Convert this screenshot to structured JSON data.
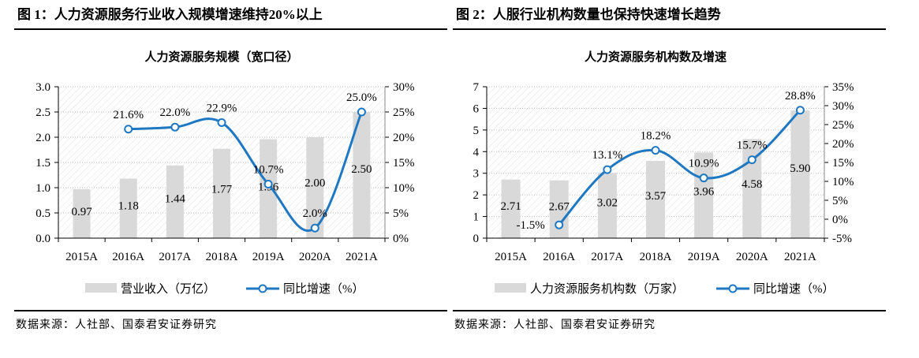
{
  "figures": [
    {
      "header": "图 1：人力资源服务行业收入规模增速维持20%以上",
      "source": "数据来源：人社部、国泰君安证券研究"
    },
    {
      "header": "图 2：人服行业机构数量也保持快速增长趋势",
      "source": "数据来源：人社部、国泰君安证券研究"
    }
  ],
  "colors": {
    "bar": "#d9d9d9",
    "line": "#1f78c1",
    "grid": "#bfbfbf"
  },
  "chart_data": [
    {
      "type": "bar+line",
      "title": "人力资源服务规模（宽口径）",
      "categories": [
        "2015A",
        "2016A",
        "2017A",
        "2018A",
        "2019A",
        "2020A",
        "2021A"
      ],
      "series": [
        {
          "name": "营业收入（万亿）",
          "type": "bar",
          "axis": "left",
          "values": [
            0.97,
            1.18,
            1.44,
            1.77,
            1.96,
            2.0,
            2.5
          ],
          "labels": [
            "0.97",
            "1.18",
            "1.44",
            "1.77",
            "1.96",
            "2.00",
            "2.50"
          ]
        },
        {
          "name": "同比增速（%）",
          "type": "line",
          "axis": "right",
          "values": [
            null,
            21.6,
            22.0,
            22.9,
            10.7,
            2.0,
            25.0
          ],
          "labels": [
            "",
            "21.6%",
            "22.0%",
            "22.9%",
            "10.7%",
            "2.0%",
            "25.0%"
          ]
        }
      ],
      "ylim": [
        0,
        3
      ],
      "yticks": [
        "0.0",
        "0.5",
        "1.0",
        "1.5",
        "2.0",
        "2.5",
        "3.0"
      ],
      "y2lim": [
        0,
        30
      ],
      "y2ticks": [
        "0%",
        "5%",
        "10%",
        "15%",
        "20%",
        "25%",
        "30%"
      ],
      "legend": "bottom"
    },
    {
      "type": "bar+line",
      "title": "人力资源服务机构数及增速",
      "categories": [
        "2015A",
        "2016A",
        "2017A",
        "2018A",
        "2019A",
        "2020A",
        "2021A"
      ],
      "series": [
        {
          "name": "人力资源服务机构数（万家）",
          "type": "bar",
          "axis": "left",
          "values": [
            2.71,
            2.67,
            3.02,
            3.57,
            3.96,
            4.58,
            5.9
          ],
          "labels": [
            "2.71",
            "2.67",
            "3.02",
            "3.57",
            "3.96",
            "4.58",
            "5.90"
          ]
        },
        {
          "name": "同比增速（%）",
          "type": "line",
          "axis": "right",
          "values": [
            null,
            -1.5,
            13.1,
            18.2,
            10.9,
            15.7,
            28.8
          ],
          "labels": [
            "",
            "-1.5%",
            "13.1%",
            "18.2%",
            "10.9%",
            "15.7%",
            "28.8%"
          ]
        }
      ],
      "ylim": [
        0,
        7
      ],
      "yticks": [
        "0",
        "1",
        "2",
        "3",
        "4",
        "5",
        "6",
        "7"
      ],
      "y2lim": [
        -5,
        35
      ],
      "y2ticks": [
        "-5%",
        "0%",
        "5%",
        "10%",
        "15%",
        "20%",
        "25%",
        "30%",
        "35%"
      ],
      "legend": "bottom"
    }
  ]
}
